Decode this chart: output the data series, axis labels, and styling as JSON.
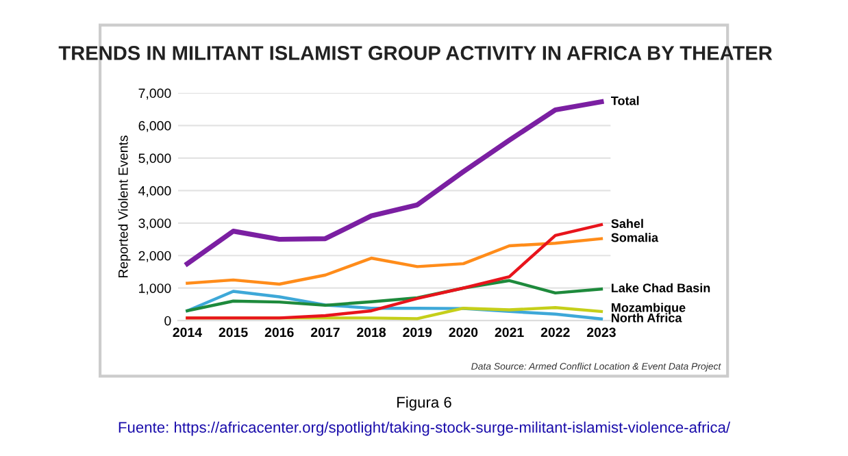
{
  "chart_data": {
    "type": "line",
    "title": "TRENDS IN MILITANT ISLAMIST GROUP ACTIVITY IN AFRICA BY THEATER",
    "ylabel": "Reported Violent Events",
    "x": [
      2014,
      2015,
      2016,
      2017,
      2018,
      2019,
      2020,
      2021,
      2022,
      2023
    ],
    "xlim": [
      2013.8,
      2023.2
    ],
    "xticks": [
      2014,
      2015,
      2016,
      2017,
      2018,
      2019,
      2020,
      2021,
      2022,
      2023
    ],
    "ylim": [
      0,
      7000
    ],
    "yticks": [
      {
        "value": 0,
        "label": "0"
      },
      {
        "value": 1000,
        "label": "1,000"
      },
      {
        "value": 2000,
        "label": "2,000"
      },
      {
        "value": 3000,
        "label": "3,000"
      },
      {
        "value": 4000,
        "label": "4,000"
      },
      {
        "value": 5000,
        "label": "5,000"
      },
      {
        "value": 6000,
        "label": "6,000"
      },
      {
        "value": 7000,
        "label": "7,000"
      }
    ],
    "grid": "y",
    "legend": false,
    "marker": "none",
    "line_style": "solid",
    "series": [
      {
        "name": "Total",
        "color": "#7b1fa2",
        "values": [
          1750,
          2750,
          2500,
          2520,
          3220,
          3560,
          4580,
          5550,
          6480,
          6730
        ]
      },
      {
        "name": "Sahel",
        "color": "#e8141c",
        "values": [
          80,
          80,
          80,
          150,
          300,
          680,
          1000,
          1350,
          2620,
          2950
        ]
      },
      {
        "name": "Somalia",
        "color": "#ff8c1a",
        "values": [
          1150,
          1250,
          1120,
          1400,
          1920,
          1660,
          1750,
          2300,
          2380,
          2520
        ]
      },
      {
        "name": "Lake Chad Basin",
        "color": "#1e8a3c",
        "values": [
          300,
          600,
          570,
          470,
          580,
          700,
          1000,
          1230,
          850,
          970
        ]
      },
      {
        "name": "Mozambique",
        "color": "#c5cf1a",
        "values": [
          80,
          80,
          80,
          80,
          80,
          60,
          380,
          330,
          400,
          280
        ]
      },
      {
        "name": "North Africa",
        "color": "#3ea8d8",
        "values": [
          300,
          900,
          730,
          480,
          380,
          380,
          370,
          280,
          200,
          50
        ]
      }
    ],
    "annotations": [
      "Data Source: Armed Conflict Location & Event Data Project",
      "Figura 6",
      "Fuente: https://africacenter.org/spotlight/taking-stock-surge-militant-islamist-violence-africa/"
    ]
  }
}
